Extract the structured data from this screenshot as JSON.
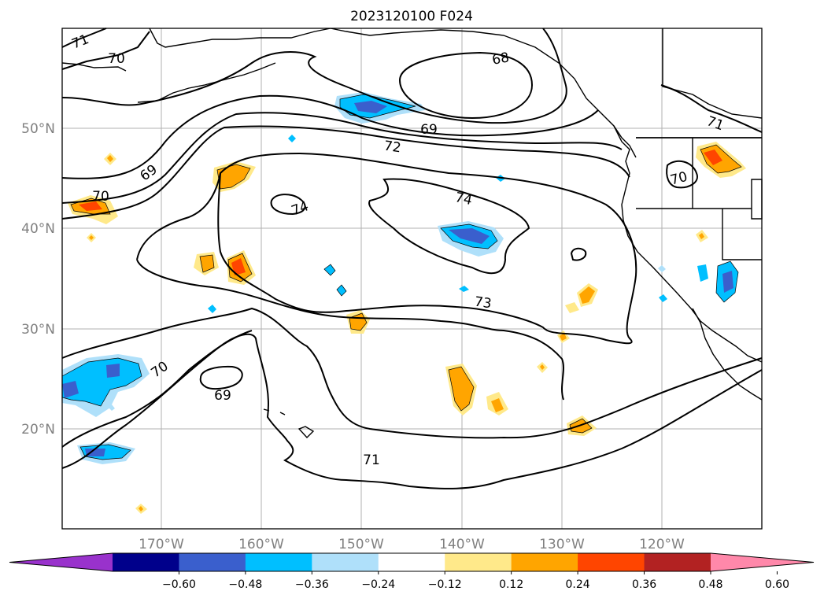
{
  "title": "2023120100 F024",
  "lat_labels": [
    "50°N",
    "40°N",
    "30°N",
    "20°N"
  ],
  "lon_labels": [
    "170°W",
    "160°W",
    "150°W",
    "140°W",
    "130°W",
    "120°W"
  ],
  "contour_labels": [
    "71",
    "70",
    "68",
    "69",
    "72",
    "74",
    "74",
    "70",
    "69",
    "71",
    "70",
    "73",
    "70",
    "69",
    "71"
  ],
  "colorbar": {
    "ticks": [
      "−0.60",
      "−0.48",
      "−0.36",
      "−0.24",
      "−0.12",
      "0.12",
      "0.24",
      "0.36",
      "0.48",
      "0.60"
    ],
    "colors": [
      "#9932cc",
      "#00008b",
      "#3a5fcd",
      "#00bfff",
      "#afe0fa",
      "#ffffff",
      "#ffe98a",
      "#ffa500",
      "#ff4500",
      "#b22222",
      "#ff88aa"
    ]
  },
  "colors": {
    "contour": "#000000",
    "coast": "#000000",
    "grid": "#b0b0b0",
    "axis_label": "#808080"
  }
}
